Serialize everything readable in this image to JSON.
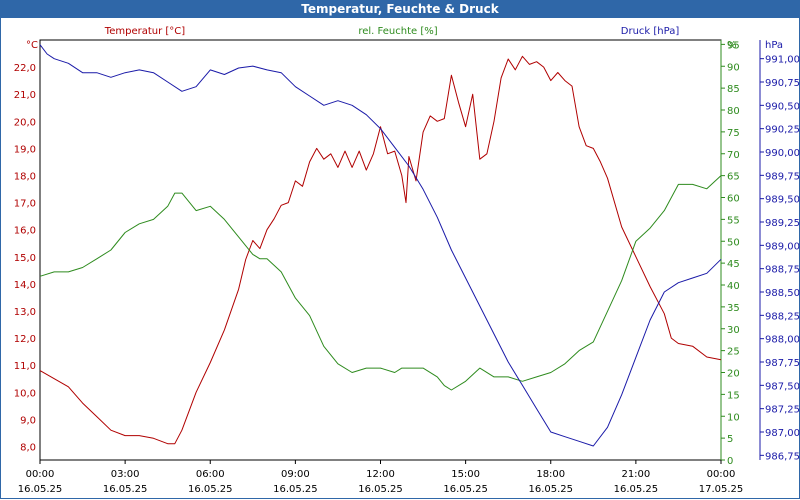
{
  "chart_data": {
    "type": "line",
    "title": "Temperatur, Feuchte & Druck",
    "x_tick_times": [
      "00:00",
      "03:00",
      "06:00",
      "09:00",
      "12:00",
      "15:00",
      "18:00",
      "21:00",
      "00:00"
    ],
    "x_tick_dates": [
      "16.05.25",
      "16.05.25",
      "16.05.25",
      "16.05.25",
      "16.05.25",
      "16.05.25",
      "16.05.25",
      "16.05.25",
      "17.05.25"
    ],
    "x_range_hours": [
      0,
      24
    ],
    "grid": true,
    "axes": {
      "temperature": {
        "label": "Temperatur [°C]",
        "unit": "°C",
        "color": "#b00000",
        "position": "left",
        "range": [
          7.5,
          23.0
        ],
        "ticks": [
          "8,0",
          "9,0",
          "10,0",
          "11,0",
          "12,0",
          "13,0",
          "14,0",
          "15,0",
          "16,0",
          "17,0",
          "18,0",
          "19,0",
          "20,0",
          "21,0",
          "22,0"
        ]
      },
      "humidity": {
        "label": "rel. Feuchte [%]",
        "unit": "%",
        "color": "#2e8b1e",
        "position": "right",
        "range": [
          0,
          96
        ],
        "ticks": [
          "0",
          "5",
          "10",
          "15",
          "20",
          "25",
          "30",
          "35",
          "40",
          "45",
          "50",
          "55",
          "60",
          "65",
          "70",
          "75",
          "80",
          "85",
          "90",
          "95",
          "%"
        ]
      },
      "pressure": {
        "label": "Druck [hPa]",
        "unit": "hPa",
        "color": "#1a1aa8",
        "position": "right",
        "range": [
          986.7,
          991.2
        ],
        "ticks": [
          "986,75",
          "987,00",
          "987,25",
          "987,50",
          "987,75",
          "988,00",
          "988,25",
          "988,50",
          "988,75",
          "989,00",
          "989,25",
          "989,50",
          "989,75",
          "990,00",
          "990,25",
          "990,50",
          "990,75",
          "991,00",
          "hPa"
        ]
      }
    },
    "series": [
      {
        "name": "Temperatur [°C]",
        "axis": "temperature",
        "color": "#b00000",
        "x": [
          0.0,
          0.5,
          1.0,
          1.5,
          2.0,
          2.5,
          3.0,
          3.5,
          4.0,
          4.5,
          4.75,
          5.0,
          5.5,
          6.0,
          6.5,
          7.0,
          7.25,
          7.5,
          7.75,
          8.0,
          8.25,
          8.5,
          8.75,
          9.0,
          9.25,
          9.5,
          9.75,
          10.0,
          10.25,
          10.5,
          10.75,
          11.0,
          11.25,
          11.5,
          11.75,
          12.0,
          12.25,
          12.5,
          12.75,
          12.9,
          13.0,
          13.25,
          13.5,
          13.75,
          14.0,
          14.25,
          14.5,
          14.75,
          15.0,
          15.25,
          15.5,
          15.75,
          16.0,
          16.25,
          16.5,
          16.75,
          17.0,
          17.25,
          17.5,
          17.75,
          18.0,
          18.25,
          18.5,
          18.75,
          19.0,
          19.25,
          19.5,
          19.75,
          20.0,
          20.5,
          21.0,
          21.5,
          22.0,
          22.25,
          22.5,
          23.0,
          23.5,
          24.0
        ],
        "values": [
          10.8,
          10.5,
          10.2,
          9.6,
          9.1,
          8.6,
          8.4,
          8.4,
          8.3,
          8.1,
          8.1,
          8.6,
          10.0,
          11.1,
          12.3,
          13.8,
          14.9,
          15.6,
          15.3,
          16.0,
          16.4,
          16.9,
          17.0,
          17.8,
          17.6,
          18.5,
          19.0,
          18.6,
          18.8,
          18.3,
          18.9,
          18.3,
          18.9,
          18.2,
          18.8,
          19.8,
          18.8,
          18.9,
          18.0,
          17.0,
          18.7,
          17.8,
          19.6,
          20.2,
          20.0,
          20.1,
          21.7,
          20.7,
          19.8,
          21.0,
          18.6,
          18.8,
          20.0,
          21.6,
          22.3,
          21.9,
          22.4,
          22.1,
          22.2,
          22.0,
          21.5,
          21.8,
          21.5,
          21.3,
          19.8,
          19.1,
          19.0,
          18.5,
          17.9,
          16.1,
          15.0,
          13.9,
          12.9,
          12.0,
          11.8,
          11.7,
          11.3,
          11.2
        ]
      },
      {
        "name": "rel. Feuchte [%]",
        "axis": "humidity",
        "color": "#2e8b1e",
        "x": [
          0.0,
          0.5,
          1.0,
          1.5,
          2.0,
          2.5,
          3.0,
          3.5,
          4.0,
          4.5,
          4.75,
          5.0,
          5.5,
          6.0,
          6.5,
          7.0,
          7.5,
          7.75,
          8.0,
          8.5,
          9.0,
          9.5,
          10.0,
          10.5,
          11.0,
          11.5,
          12.0,
          12.5,
          12.75,
          13.0,
          13.5,
          14.0,
          14.25,
          14.5,
          15.0,
          15.5,
          16.0,
          16.5,
          17.0,
          17.5,
          18.0,
          18.5,
          19.0,
          19.5,
          20.0,
          20.5,
          21.0,
          21.5,
          22.0,
          22.5,
          23.0,
          23.5,
          24.0
        ],
        "values": [
          42,
          43,
          43,
          44,
          46,
          48,
          52,
          54,
          55,
          58,
          61,
          61,
          57,
          58,
          55,
          51,
          47,
          46,
          46,
          43,
          37,
          33,
          26,
          22,
          20,
          21,
          21,
          20,
          21,
          21,
          21,
          19,
          17,
          16,
          18,
          21,
          19,
          19,
          18,
          19,
          20,
          22,
          25,
          27,
          34,
          41,
          50,
          53,
          57,
          63,
          63,
          62,
          65
        ]
      },
      {
        "name": "Druck [hPa]",
        "axis": "pressure",
        "color": "#1a1aa8",
        "x": [
          0.0,
          0.25,
          0.5,
          1.0,
          1.5,
          2.0,
          2.5,
          3.0,
          3.5,
          4.0,
          4.5,
          5.0,
          5.5,
          6.0,
          6.5,
          7.0,
          7.5,
          8.0,
          8.5,
          9.0,
          9.5,
          10.0,
          10.5,
          11.0,
          11.5,
          12.0,
          12.5,
          13.0,
          13.5,
          14.0,
          14.5,
          15.0,
          15.5,
          16.0,
          16.5,
          17.0,
          17.5,
          18.0,
          18.5,
          19.0,
          19.5,
          20.0,
          20.5,
          21.0,
          21.5,
          22.0,
          22.5,
          23.0,
          23.5,
          24.0
        ],
        "values": [
          991.15,
          991.05,
          991.0,
          990.95,
          990.85,
          990.85,
          990.8,
          990.85,
          990.88,
          990.85,
          990.75,
          990.65,
          990.7,
          990.88,
          990.83,
          990.9,
          990.92,
          990.88,
          990.85,
          990.7,
          990.6,
          990.5,
          990.55,
          990.5,
          990.4,
          990.25,
          990.05,
          989.85,
          989.6,
          989.3,
          988.95,
          988.65,
          988.35,
          988.05,
          987.75,
          987.5,
          987.25,
          987.0,
          986.95,
          986.9,
          986.85,
          987.05,
          987.4,
          987.8,
          988.2,
          988.5,
          988.6,
          988.65,
          988.7,
          988.85
        ]
      }
    ]
  }
}
